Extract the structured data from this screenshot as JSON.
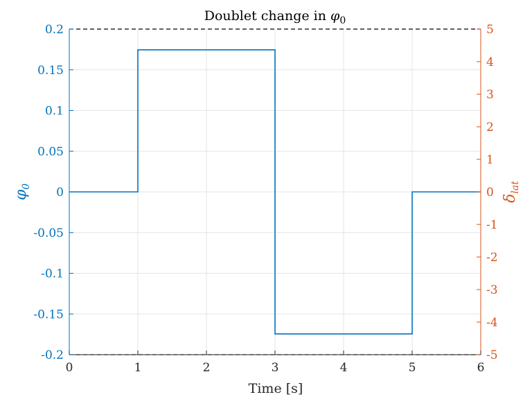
{
  "chart_data": {
    "type": "line",
    "title": "Doublet change in",
    "title_symbol": "φ",
    "title_subscript": "0",
    "xlabel": "Time [s]",
    "ylabel_left_symbol": "φ",
    "ylabel_left_subscript": "0",
    "ylabel_right_symbol": "δ",
    "ylabel_right_subscript": "lat",
    "xlim": [
      0,
      6
    ],
    "ylim_left": [
      -0.2,
      0.2
    ],
    "ylim_right": [
      -5,
      5
    ],
    "x_ticks": [
      "0",
      "1",
      "2",
      "3",
      "4",
      "5",
      "6"
    ],
    "left_ticks": [
      {
        "value": 0.2,
        "label": "0.2"
      },
      {
        "value": 0.15,
        "label": "0.15"
      },
      {
        "value": 0.1,
        "label": "0.1"
      },
      {
        "value": 0.05,
        "label": "0.05"
      },
      {
        "value": 0,
        "label": "0"
      },
      {
        "value": -0.05,
        "label": "-0.05"
      },
      {
        "value": -0.1,
        "label": "-0.1"
      },
      {
        "value": -0.15,
        "label": "-0.15"
      },
      {
        "value": -0.2,
        "label": "-0.2"
      }
    ],
    "right_ticks": [
      {
        "value": 5,
        "label": "5"
      },
      {
        "value": 4,
        "label": "4"
      },
      {
        "value": 3,
        "label": "3"
      },
      {
        "value": 2,
        "label": "2"
      },
      {
        "value": 1,
        "label": "1"
      },
      {
        "value": 0,
        "label": "0"
      },
      {
        "value": -1,
        "label": "-1"
      },
      {
        "value": -2,
        "label": "-2"
      },
      {
        "value": -3,
        "label": "-3"
      },
      {
        "value": -4,
        "label": "-4"
      },
      {
        "value": -5,
        "label": "-5"
      }
    ],
    "grid": true,
    "series": [
      {
        "name": "phi0",
        "axis": "left",
        "color": "#0072BD",
        "x": [
          0,
          1,
          1,
          3,
          3,
          5,
          5,
          6
        ],
        "y": [
          0,
          0,
          0.1745,
          0.1745,
          -0.1745,
          -0.1745,
          0,
          0
        ]
      }
    ],
    "limit_lines": [
      {
        "value": 0.2,
        "axis": "left",
        "style": "dashed",
        "color": "#000000"
      },
      {
        "value": -0.2,
        "axis": "left",
        "style": "dashed",
        "color": "#000000"
      }
    ],
    "colors": {
      "left_axis": "#0072BD",
      "right_axis": "#D95319",
      "grid": "#e1e6ea",
      "text": "#262626"
    }
  }
}
